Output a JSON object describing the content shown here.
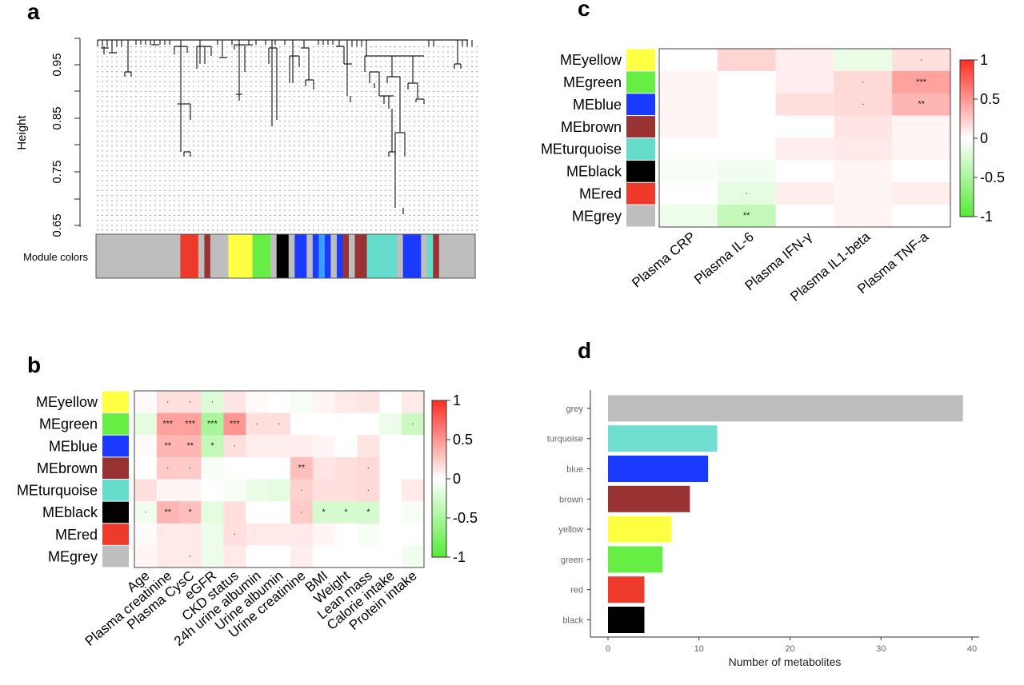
{
  "panels": {
    "a": "a",
    "b": "b",
    "c": "c",
    "d": "d"
  },
  "chart_data": [
    {
      "panel": "a",
      "type": "dendrogram",
      "ylabel": "Height",
      "ylim": [
        0.65,
        1.0
      ],
      "yticks": [
        "0.95",
        "0.85",
        "0.75",
        "0.65"
      ],
      "module_colors_label": "Module colors",
      "module_color_bar": [
        {
          "color": "#bebebe",
          "n": 14
        },
        {
          "color": "#ee3a2a",
          "n": 3
        },
        {
          "color": "#bebebe",
          "n": 1
        },
        {
          "color": "#993333",
          "n": 1
        },
        {
          "color": "#bebebe",
          "n": 3
        },
        {
          "color": "#ffff44",
          "n": 4
        },
        {
          "color": "#66ee44",
          "n": 3
        },
        {
          "color": "#bebebe",
          "n": 1
        },
        {
          "color": "#000000",
          "n": 2
        },
        {
          "color": "#bebebe",
          "n": 1
        },
        {
          "color": "#1a3bff",
          "n": 2
        },
        {
          "color": "#bebebe",
          "n": 1
        },
        {
          "color": "#1a3bff",
          "n": 1
        },
        {
          "color": "#3aa0ff",
          "n": 1
        },
        {
          "color": "#1a3bff",
          "n": 1
        },
        {
          "color": "#bebebe",
          "n": 1
        },
        {
          "color": "#1a3bff",
          "n": 1
        },
        {
          "color": "#993333",
          "n": 1
        },
        {
          "color": "#bebebe",
          "n": 1
        },
        {
          "color": "#993333",
          "n": 2
        },
        {
          "color": "#66ddcc",
          "n": 5
        },
        {
          "color": "#bebebe",
          "n": 1
        },
        {
          "color": "#1a3bff",
          "n": 3
        },
        {
          "color": "#bebebe",
          "n": 1
        },
        {
          "color": "#66ddcc",
          "n": 1
        },
        {
          "color": "#993333",
          "n": 1
        },
        {
          "color": "#bebebe",
          "n": 6
        }
      ]
    },
    {
      "panel": "b",
      "type": "heatmap",
      "rows": [
        "MEyellow",
        "MEgreen",
        "MEblue",
        "MEbrown",
        "MEturquoise",
        "MEblack",
        "MEred",
        "MEgrey"
      ],
      "row_colors": [
        "#ffff44",
        "#66ee44",
        "#1a3bff",
        "#993333",
        "#66ddcc",
        "#000000",
        "#ee3a2a",
        "#bebebe"
      ],
      "columns": [
        "Age",
        "Plasma creatinine",
        "Plasma CysC",
        "eGFR",
        "CKD status",
        "24h urine albumin",
        "Urine albumin",
        "Urine creatinine",
        "BMI",
        "Weight",
        "Lean mass",
        "Calorie intake",
        "Protein intake"
      ],
      "values": [
        [
          0.02,
          0.15,
          0.15,
          -0.2,
          0.12,
          0.03,
          0.0,
          -0.05,
          0.05,
          0.1,
          0.12,
          0.0,
          0.1
        ],
        [
          -0.15,
          0.45,
          0.45,
          -0.5,
          0.5,
          0.15,
          0.15,
          0.0,
          0.0,
          0.0,
          0.0,
          -0.1,
          -0.3
        ],
        [
          0.02,
          0.35,
          0.35,
          -0.35,
          0.15,
          0.08,
          0.08,
          0.08,
          0.05,
          0.0,
          0.12,
          0.0,
          0.0
        ],
        [
          0.0,
          0.25,
          0.25,
          -0.05,
          0.0,
          0.0,
          0.0,
          0.3,
          0.12,
          0.15,
          0.18,
          0.0,
          0.0
        ],
        [
          0.15,
          0.05,
          0.05,
          0.0,
          -0.05,
          -0.12,
          -0.15,
          0.22,
          0.15,
          0.15,
          0.18,
          0.0,
          0.1
        ],
        [
          -0.08,
          0.35,
          0.3,
          -0.15,
          0.15,
          0.0,
          0.0,
          0.25,
          -0.25,
          -0.25,
          -0.25,
          0.0,
          -0.05
        ],
        [
          0.02,
          0.1,
          0.1,
          -0.1,
          0.15,
          0.1,
          0.1,
          0.1,
          0.05,
          0.0,
          -0.05,
          0.0,
          0.0
        ],
        [
          0.05,
          0.1,
          0.1,
          -0.1,
          0.1,
          0.0,
          0.0,
          0.08,
          0.0,
          0.0,
          0.0,
          0.0,
          -0.08
        ]
      ],
      "annotations": [
        [
          "",
          "·",
          "·",
          "·",
          "",
          "",
          "",
          "",
          "",
          "",
          "",
          "",
          ""
        ],
        [
          "",
          "***",
          "***",
          "***",
          "***",
          "·",
          "·",
          "",
          "",
          "",
          "",
          "",
          "·"
        ],
        [
          "",
          "**",
          "**",
          "*",
          "·",
          "",
          "",
          "",
          "",
          "",
          "",
          "",
          ""
        ],
        [
          "",
          "·",
          "·",
          "",
          "",
          "",
          "",
          "**",
          "",
          "",
          "·",
          "",
          ""
        ],
        [
          "",
          "",
          "",
          "",
          "",
          "",
          "",
          "·",
          "",
          "",
          "·",
          "",
          ""
        ],
        [
          "·",
          "**",
          "*",
          "",
          "",
          "",
          "",
          "·",
          "*",
          "*",
          "*",
          "",
          ""
        ],
        [
          "",
          "",
          "",
          "",
          "·",
          "",
          "",
          "",
          "",
          "",
          "",
          "",
          ""
        ],
        [
          "",
          "",
          "·",
          "",
          "",
          "",
          "",
          "",
          "",
          "",
          "",
          "",
          ""
        ]
      ],
      "legend_ticks": [
        "1",
        "0.5",
        "0",
        "-0.5",
        "-1"
      ],
      "zlim": [
        -1,
        1
      ]
    },
    {
      "panel": "c",
      "type": "heatmap",
      "rows": [
        "MEyellow",
        "MEgreen",
        "MEblue",
        "MEbrown",
        "MEturquoise",
        "MEblack",
        "MEred",
        "MEgrey"
      ],
      "row_colors": [
        "#ffff44",
        "#66ee44",
        "#1a3bff",
        "#993333",
        "#66ddcc",
        "#000000",
        "#ee3a2a",
        "#bebebe"
      ],
      "columns": [
        "Plasma CRP",
        "Plasma IL-6",
        "Plasma IFN-γ",
        "Plasma IL1-beta",
        "Plasma TNF-a"
      ],
      "values": [
        [
          0.0,
          0.2,
          0.08,
          -0.12,
          0.15
        ],
        [
          0.05,
          0.0,
          0.08,
          0.18,
          0.45
        ],
        [
          0.05,
          0.0,
          0.15,
          0.18,
          0.35
        ],
        [
          0.05,
          0.0,
          0.0,
          0.12,
          0.05
        ],
        [
          0.0,
          0.0,
          0.08,
          0.1,
          0.05
        ],
        [
          -0.05,
          -0.08,
          0.0,
          0.05,
          0.0
        ],
        [
          0.0,
          -0.15,
          0.08,
          0.05,
          0.08
        ],
        [
          -0.1,
          -0.35,
          0.0,
          0.05,
          0.0
        ]
      ],
      "annotations": [
        [
          "",
          "",
          "",
          "",
          "·"
        ],
        [
          "",
          "",
          "",
          "·",
          "***"
        ],
        [
          "",
          "",
          "",
          "·",
          "**"
        ],
        [
          "",
          "",
          "",
          "",
          ""
        ],
        [
          "",
          "",
          "",
          "",
          ""
        ],
        [
          "",
          "",
          "",
          "",
          ""
        ],
        [
          "",
          "·",
          "",
          "",
          ""
        ],
        [
          "",
          "**",
          "",
          "",
          ""
        ]
      ],
      "legend_ticks": [
        "1",
        "0.5",
        "0",
        "-0.5",
        "-1"
      ],
      "zlim": [
        -1,
        1
      ]
    },
    {
      "panel": "d",
      "type": "bar",
      "orientation": "horizontal",
      "categories": [
        "grey",
        "turquoise",
        "blue",
        "brown",
        "yellow",
        "green",
        "red",
        "black"
      ],
      "values": [
        39,
        12,
        11,
        9,
        7,
        6,
        4,
        4
      ],
      "colors": [
        "#bebebe",
        "#6fded0",
        "#1a3bff",
        "#993333",
        "#ffff44",
        "#66ee44",
        "#ee3a2a",
        "#000000"
      ],
      "xlabel": "Number of metabolites",
      "xlim": [
        0,
        40
      ],
      "xticks": [
        "0",
        "10",
        "20",
        "30",
        "40"
      ]
    }
  ]
}
